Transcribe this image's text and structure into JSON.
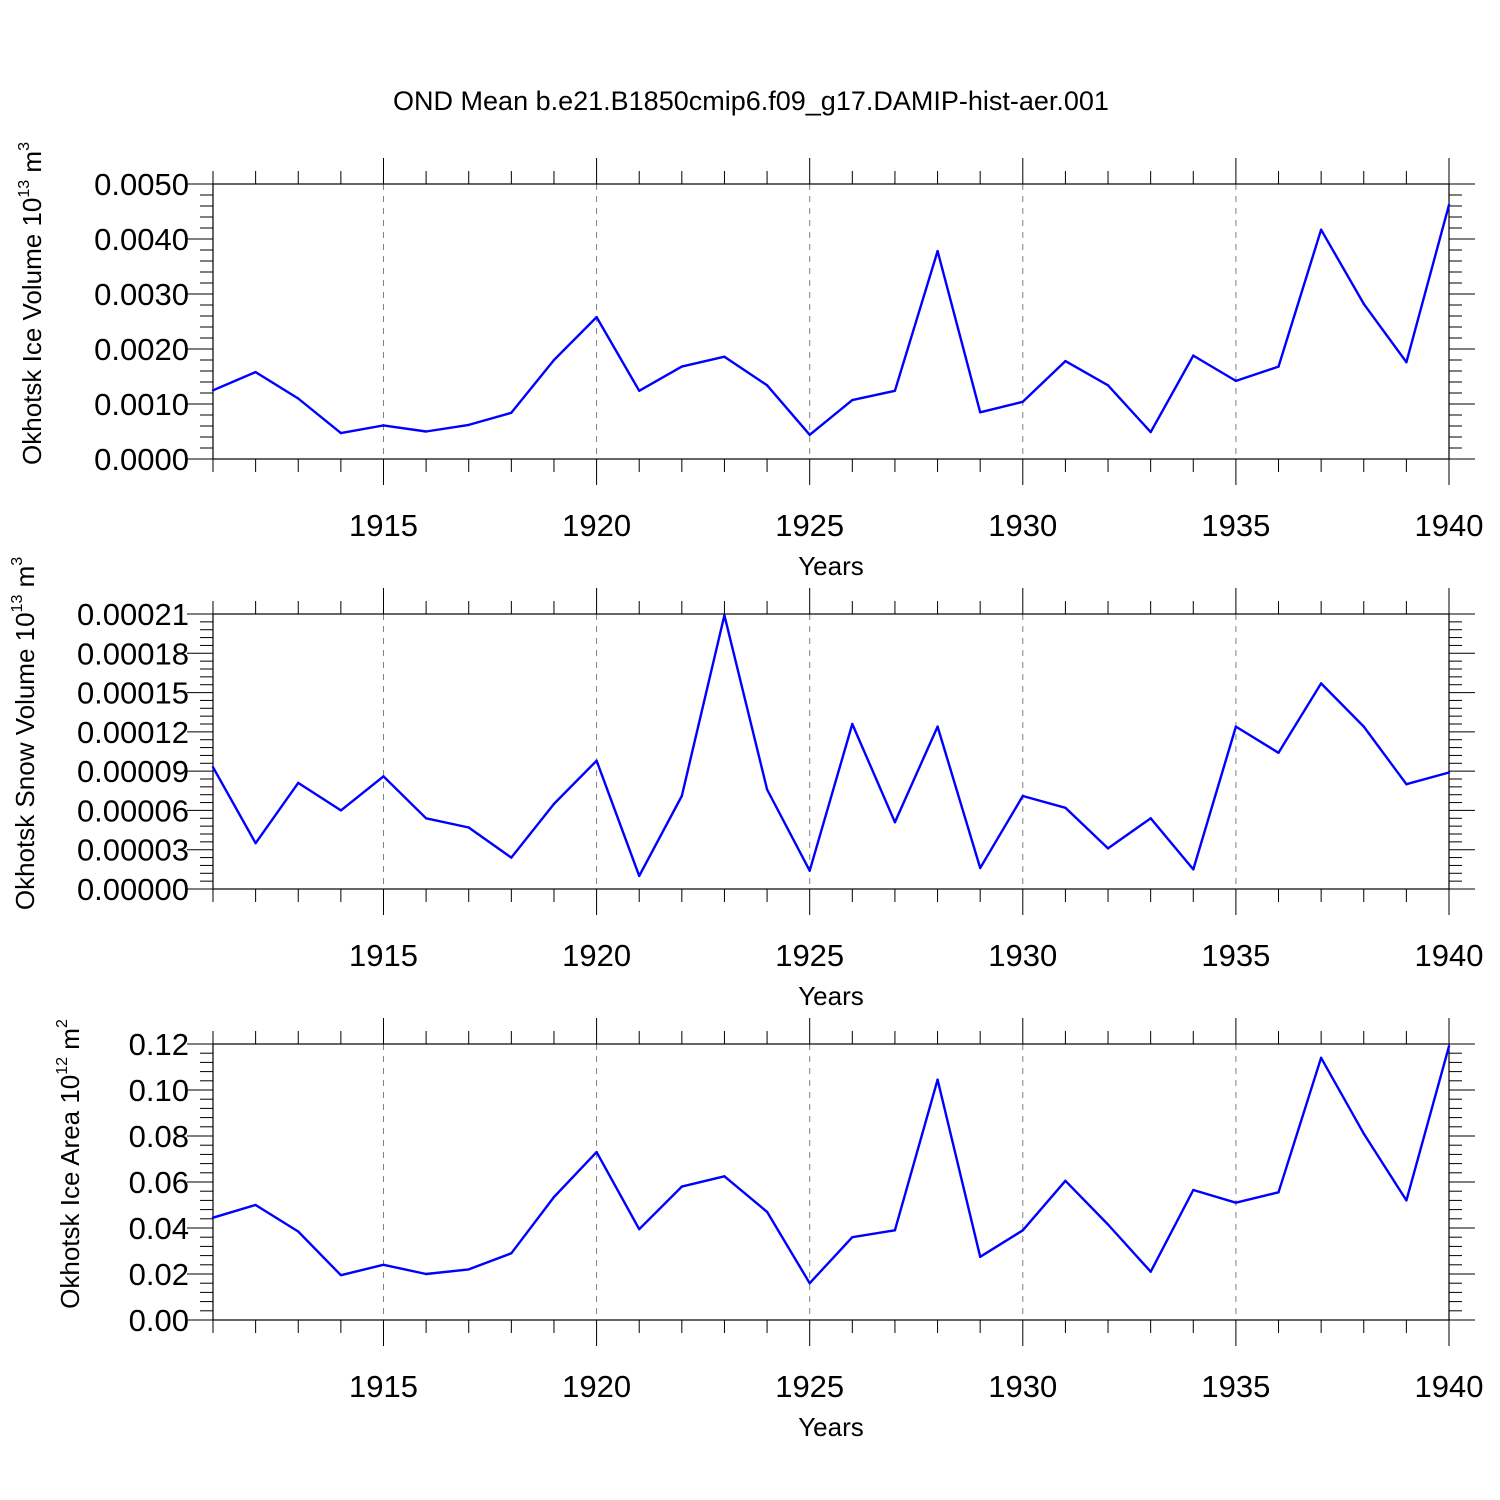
{
  "title": "OND Mean b.e21.B1850cmip6.f09_g17.DAMIP-hist-aer.001",
  "colors": {
    "line": "#0000ff",
    "axis": "#000000",
    "grid": "#808080"
  },
  "chart_data": [
    {
      "type": "line",
      "xlabel": "Years",
      "ylabel": {
        "main": "Okhotsk Ice Volume 10",
        "exp": "13",
        "unit": " m",
        "unit_exp": "3"
      },
      "xlim": [
        1911,
        1940
      ],
      "ylim": [
        0,
        0.005
      ],
      "xticks": [
        "1915",
        "1920",
        "1925",
        "1930",
        "1935",
        "1940"
      ],
      "yticks": [
        "0.0000",
        "0.0010",
        "0.0020",
        "0.0030",
        "0.0040",
        "0.0050"
      ],
      "grid": "dashed vertical at labeled years",
      "x": [
        1911,
        1912,
        1913,
        1914,
        1915,
        1916,
        1917,
        1918,
        1919,
        1920,
        1921,
        1922,
        1923,
        1924,
        1925,
        1926,
        1927,
        1928,
        1929,
        1930,
        1931,
        1932,
        1933,
        1934,
        1935,
        1936,
        1937,
        1938,
        1939,
        1940
      ],
      "values": [
        0.00125,
        0.00158,
        0.0011,
        0.00047,
        0.00061,
        0.0005,
        0.00062,
        0.00084,
        0.0018,
        0.00258,
        0.00124,
        0.00168,
        0.00186,
        0.00134,
        0.00044,
        0.00107,
        0.00124,
        0.00378,
        0.00085,
        0.00104,
        0.00178,
        0.00134,
        0.00049,
        0.00188,
        0.00142,
        0.00168,
        0.00417,
        0.00282,
        0.00176,
        0.00462
      ]
    },
    {
      "type": "line",
      "xlabel": "Years",
      "ylabel": {
        "main": "Okhotsk Snow Volume 10",
        "exp": "13",
        "unit": " m",
        "unit_exp": "3"
      },
      "xlim": [
        1911,
        1940
      ],
      "ylim": [
        0,
        0.00021
      ],
      "xticks": [
        "1915",
        "1920",
        "1925",
        "1930",
        "1935",
        "1940"
      ],
      "yticks": [
        "0.00000",
        "0.00003",
        "0.00006",
        "0.00009",
        "0.00012",
        "0.00015",
        "0.00018",
        "0.00021"
      ],
      "grid": "dashed vertical at labeled years",
      "x": [
        1911,
        1912,
        1913,
        1914,
        1915,
        1916,
        1917,
        1918,
        1919,
        1920,
        1921,
        1922,
        1923,
        1924,
        1925,
        1926,
        1927,
        1928,
        1929,
        1930,
        1931,
        1932,
        1933,
        1934,
        1935,
        1936,
        1937,
        1938,
        1939,
        1940
      ],
      "values": [
        9.3e-05,
        3.5e-05,
        8.1e-05,
        6e-05,
        8.6e-05,
        5.4e-05,
        4.7e-05,
        2.4e-05,
        6.5e-05,
        9.8e-05,
        1e-05,
        7.1e-05,
        0.000209,
        7.6e-05,
        1.4e-05,
        0.000126,
        5.1e-05,
        0.000124,
        1.6e-05,
        7.1e-05,
        6.2e-05,
        3.1e-05,
        5.4e-05,
        1.5e-05,
        0.000124,
        0.000104,
        0.000157,
        0.000124,
        8e-05,
        8.9e-05
      ]
    },
    {
      "type": "line",
      "xlabel": "Years",
      "ylabel": {
        "main": "Okhotsk Ice Area 10",
        "exp": "12",
        "unit": " m",
        "unit_exp": "2"
      },
      "xlim": [
        1911,
        1940
      ],
      "ylim": [
        0,
        0.12
      ],
      "xticks": [
        "1915",
        "1920",
        "1925",
        "1930",
        "1935",
        "1940"
      ],
      "yticks": [
        "0.00",
        "0.02",
        "0.04",
        "0.06",
        "0.08",
        "0.10",
        "0.12"
      ],
      "grid": "dashed vertical at labeled years",
      "x": [
        1911,
        1912,
        1913,
        1914,
        1915,
        1916,
        1917,
        1918,
        1919,
        1920,
        1921,
        1922,
        1923,
        1924,
        1925,
        1926,
        1927,
        1928,
        1929,
        1930,
        1931,
        1932,
        1933,
        1934,
        1935,
        1936,
        1937,
        1938,
        1939,
        1940
      ],
      "values": [
        0.0445,
        0.05,
        0.0385,
        0.0195,
        0.024,
        0.02,
        0.022,
        0.029,
        0.0535,
        0.073,
        0.0395,
        0.058,
        0.0625,
        0.047,
        0.016,
        0.036,
        0.039,
        0.1045,
        0.0275,
        0.039,
        0.0605,
        0.0415,
        0.021,
        0.0565,
        0.051,
        0.0555,
        0.114,
        0.081,
        0.052,
        0.119
      ]
    }
  ]
}
